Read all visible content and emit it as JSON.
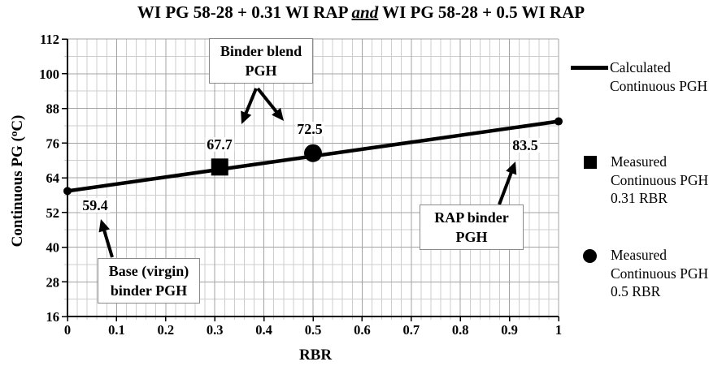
{
  "title": {
    "prefix": "WI PG 58-28 + 0.31 WI RAP ",
    "emphasis": "and",
    "suffix": " WI PG 58-28 + 0.5 WI RAP"
  },
  "y_axis_title": {
    "main": "Continuous PG (",
    "sup": "o",
    "end": "C)"
  },
  "chart_data": {
    "type": "line",
    "title": "WI PG 58-28 + 0.31 WI RAP and WI PG 58-28 + 0.5 WI RAP",
    "xlabel": "RBR",
    "ylabel": "Continuous PG (°C)",
    "xlim": [
      0,
      1
    ],
    "ylim": [
      16,
      112
    ],
    "x_major_step": 0.1,
    "x_minor_step": 0.02,
    "y_major_step": 12,
    "y_minor_step": 6,
    "x_tick_labels": [
      "0",
      "0.1",
      "0.2",
      "0.3",
      "0.4",
      "0.5",
      "0.6",
      "0.7",
      "0.8",
      "0.9",
      "1"
    ],
    "y_tick_labels": [
      "112",
      "100",
      "88",
      "76",
      "64",
      "52",
      "40",
      "28",
      "16"
    ],
    "grid": true,
    "legend_position": "right",
    "series": [
      {
        "name": "Calculated Continuous PGH",
        "type": "line",
        "x": [
          0,
          1
        ],
        "y": [
          59.4,
          83.5
        ]
      },
      {
        "name": "Measured Continuous PGH 0.31 RBR",
        "type": "point",
        "marker": "square",
        "x": 0.31,
        "y": 67.7
      },
      {
        "name": "Measured Continuous PGH 0.5 RBR",
        "type": "point",
        "marker": "circle",
        "x": 0.5,
        "y": 72.5
      }
    ],
    "point_labels": [
      {
        "text": "59.4"
      },
      {
        "text": "67.7"
      },
      {
        "text": "72.5"
      },
      {
        "text": "83.5"
      }
    ],
    "callouts": [
      {
        "lines": [
          "Binder blend",
          "PGH"
        ]
      },
      {
        "lines": [
          "Base (virgin)",
          "binder PGH"
        ]
      },
      {
        "lines": [
          "RAP binder",
          "PGH"
        ]
      }
    ],
    "arrows": [
      {
        "from": [
          315,
          109
        ],
        "to": [
          297,
          153
        ]
      },
      {
        "from": [
          317,
          109
        ],
        "to": [
          349,
          149
        ]
      },
      {
        "from": [
          138,
          317
        ],
        "to": [
          124,
          270
        ]
      },
      {
        "from": [
          614,
          252
        ],
        "to": [
          634,
          199
        ]
      }
    ]
  },
  "legend": {
    "items": [
      {
        "marker": "line",
        "lines": [
          "Calculated",
          "Continuous PGH"
        ]
      },
      {
        "marker": "square",
        "lines": [
          "Measured",
          "Continuous PGH",
          "0.31 RBR"
        ]
      },
      {
        "marker": "circle",
        "lines": [
          "Measured",
          "Continuous PGH",
          "0.5 RBR"
        ]
      }
    ]
  }
}
